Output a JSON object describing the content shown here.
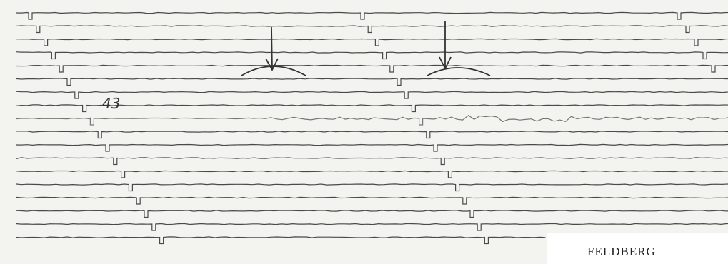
{
  "annotation": "43",
  "caption": "FELDBERG"
}
